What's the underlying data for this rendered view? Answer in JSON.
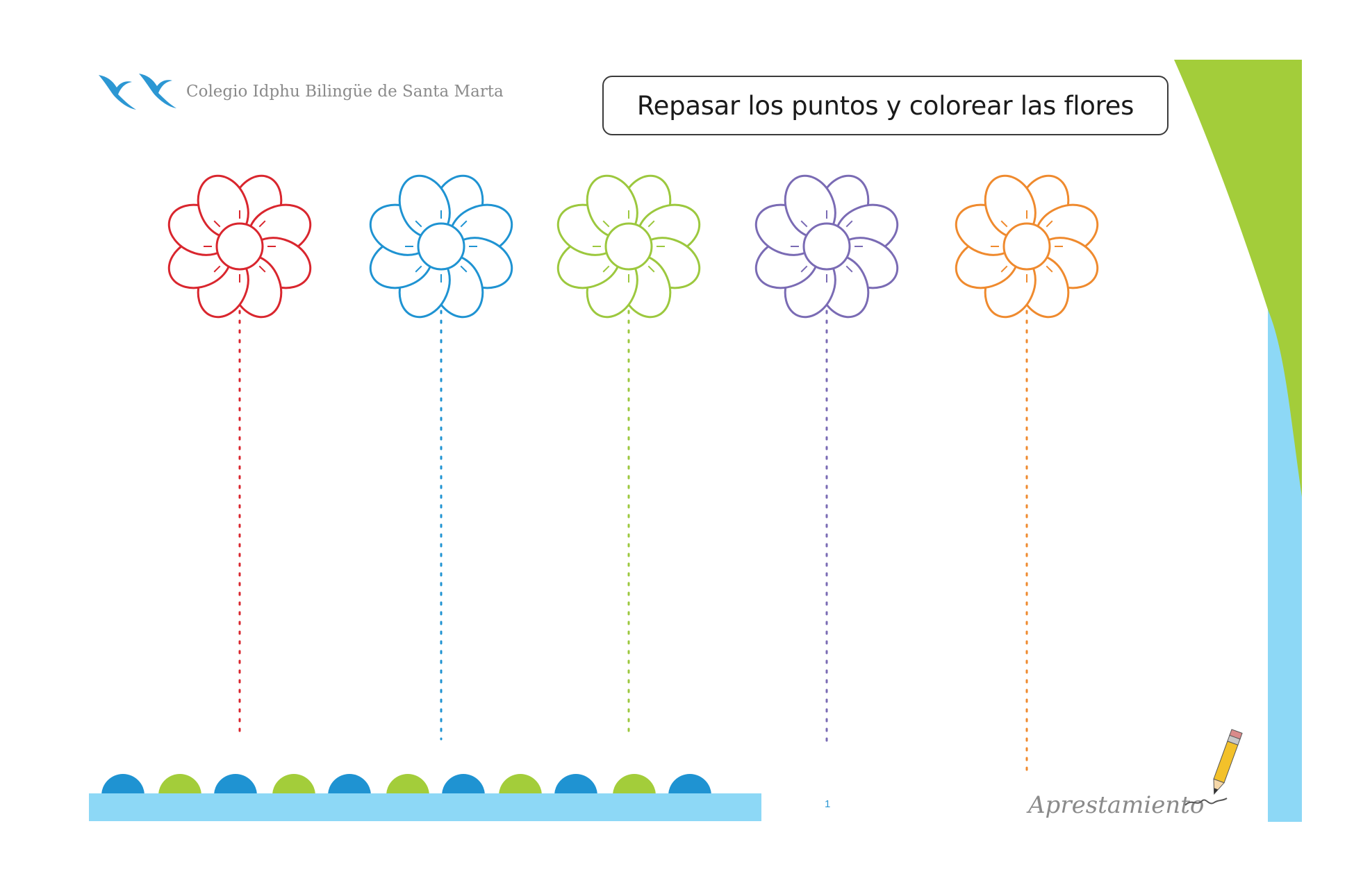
{
  "header": {
    "school_name": "Colegio Idphu Bilingüe de Santa Marta",
    "logo_icon": "seagulls-icon",
    "logo_color": "#2c97d3"
  },
  "instruction": {
    "text": "Repasar los puntos y colorear las flores"
  },
  "flowers": [
    {
      "color": "#d9262e"
    },
    {
      "color": "#1f93d2"
    },
    {
      "color": "#9cc83e"
    },
    {
      "color": "#7a6bb4"
    },
    {
      "color": "#ef8a2e"
    }
  ],
  "decoration": {
    "accent_green": "#a3cd3a",
    "accent_blue": "#8dd8f6",
    "bump_colors": [
      "#1f93d2",
      "#a3cd3a"
    ]
  },
  "footer": {
    "page_number": "1",
    "subject": "Aprestamiento",
    "pencil_icon": "pencil-icon"
  }
}
